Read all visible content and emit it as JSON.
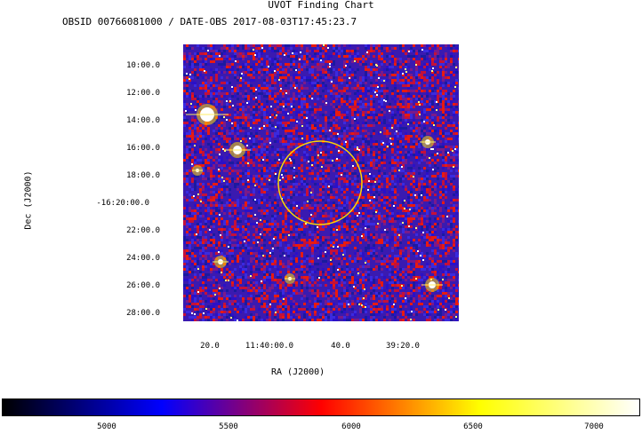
{
  "chart": {
    "title": "UVOT Finding Chart",
    "subtitle": "OBSID 00766081000 / DATE-OBS 2017-08-03T17:45:23.7"
  },
  "axes": {
    "xlabel": "RA (J2000)",
    "ylabel": "Dec (J2000)",
    "xticks": [
      "20.0",
      "11:40:00.0",
      "40.0",
      "39:20.0"
    ],
    "yticks": [
      "10:00.0",
      "12:00.0",
      "14:00.0",
      "16:00.0",
      "18:00.0",
      "-16:20:00.0",
      "22:00.0",
      "24:00.0",
      "26:00.0",
      "28:00.0"
    ]
  },
  "colorbar": {
    "min": 4600,
    "max": 7200,
    "ticks": [
      "5000",
      "5500",
      "6000",
      "6500",
      "7000"
    ],
    "tick_values": [
      5000,
      5500,
      6000,
      6500,
      7000
    ],
    "stops": [
      "#000000",
      "#0000ff",
      "#ff0000",
      "#ffff00",
      "#ffffff"
    ]
  },
  "image": {
    "source_circle_color": "#ffd700",
    "noise_colors": [
      "#1a1aa0",
      "#2b10c8",
      "#c4103a",
      "#e81a10",
      "#7a1a8a",
      "#3a2ae0"
    ]
  }
}
